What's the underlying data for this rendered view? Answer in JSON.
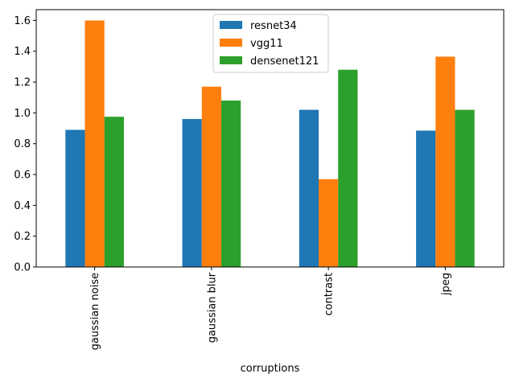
{
  "chart_data": {
    "type": "bar",
    "categories": [
      "gaussian noise",
      "gaussian blur",
      "contrast",
      "jpeg"
    ],
    "series": [
      {
        "name": "resnet34",
        "color": "#1f77b4",
        "values": [
          0.89,
          0.96,
          1.02,
          0.885
        ]
      },
      {
        "name": "vgg11",
        "color": "#ff7f0e",
        "values": [
          1.6,
          1.17,
          0.57,
          1.365
        ]
      },
      {
        "name": "densenet121",
        "color": "#2ca02c",
        "values": [
          0.975,
          1.08,
          1.28,
          1.02
        ]
      }
    ],
    "xlabel": "corruptions",
    "ylabel": "",
    "ylim": [
      0,
      1.67
    ],
    "yticks": [
      "0.0",
      "0.2",
      "0.4",
      "0.6",
      "0.8",
      "1.0",
      "1.2",
      "1.4",
      "1.6"
    ],
    "grid": false,
    "legend_position": "top-center"
  }
}
